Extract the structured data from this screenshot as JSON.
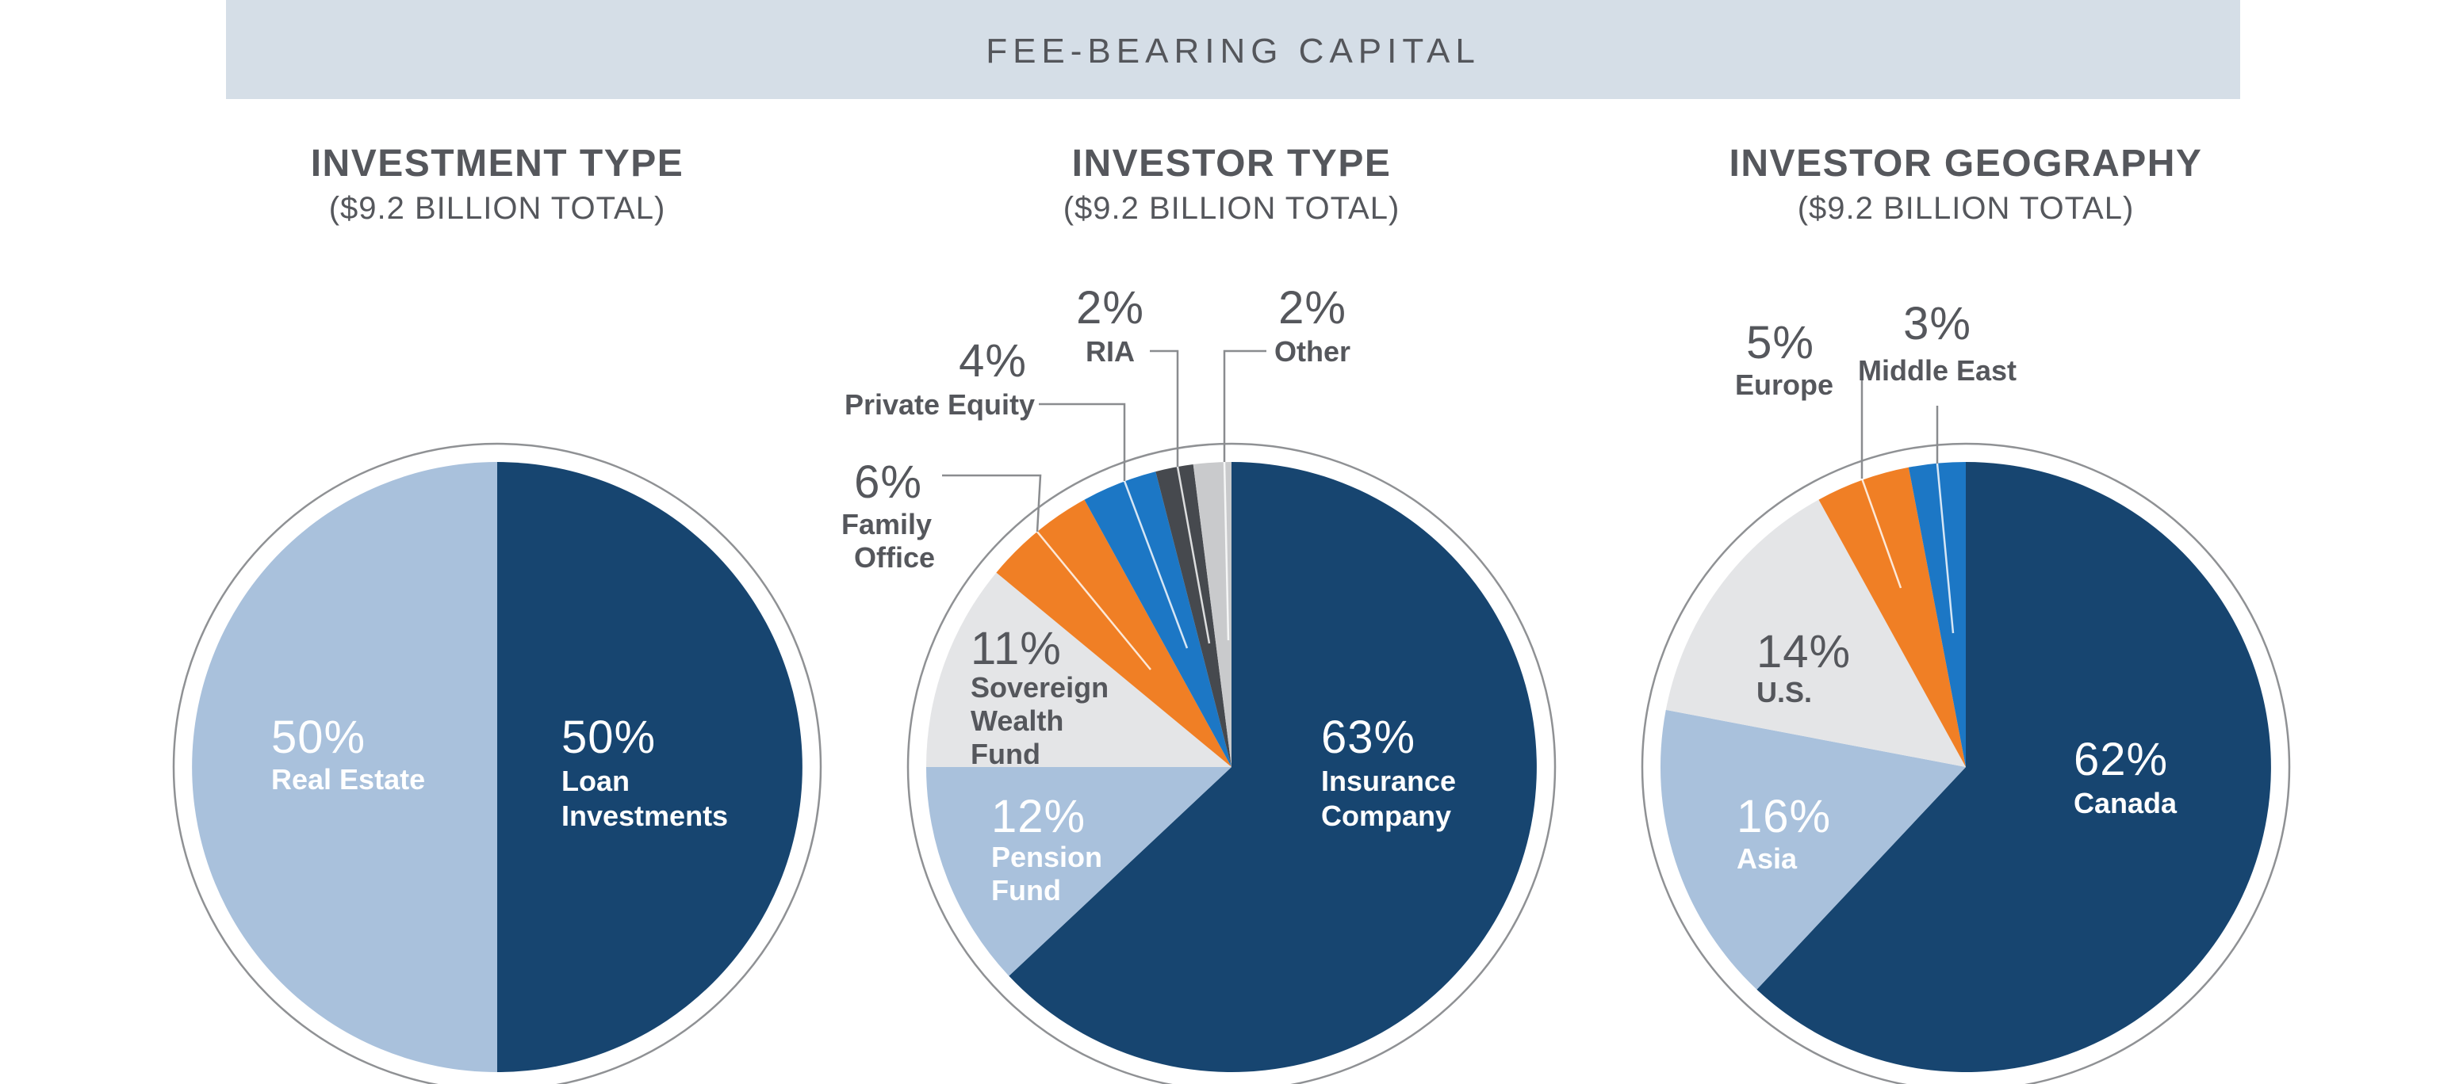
{
  "header": {
    "title": "FEE-BEARING CAPITAL"
  },
  "palette": {
    "banner_bg": "#D5DEE7",
    "text_dark": "#55575C",
    "white": "#FFFFFF",
    "ring": "#8F9194",
    "leader": "#8A8C8F",
    "navy": "#174570",
    "light_blue": "#A9C1DC",
    "silver": "#E4E5E7",
    "orange": "#F07F25",
    "blue": "#1C77C5",
    "dark_gray": "#46494E",
    "gray": "#C9CACC"
  },
  "chart_data": [
    {
      "type": "pie",
      "title": "INVESTMENT TYPE",
      "subtitle": "($9.2 BILLION TOTAL)",
      "legend_position": "inside",
      "slices": [
        {
          "label": "Loan Investments",
          "label_lines": [
            "Loan",
            "Investments"
          ],
          "value": 50,
          "pct": "50%",
          "color": "navy"
        },
        {
          "label": "Real Estate",
          "label_lines": [
            "Real Estate"
          ],
          "value": 50,
          "pct": "50%",
          "color": "light_blue"
        }
      ]
    },
    {
      "type": "pie",
      "title": "INVESTOR TYPE",
      "subtitle": "($9.2 BILLION TOTAL)",
      "legend_position": "inside-and-callouts",
      "slices": [
        {
          "label": "Insurance Company",
          "label_lines": [
            "Insurance",
            "Company"
          ],
          "value": 63,
          "pct": "63%",
          "color": "navy"
        },
        {
          "label": "Pension Fund",
          "label_lines": [
            "Pension",
            "Fund"
          ],
          "value": 12,
          "pct": "12%",
          "color": "light_blue"
        },
        {
          "label": "Sovereign Wealth Fund",
          "label_lines": [
            "Sovereign",
            "Wealth",
            "Fund"
          ],
          "value": 11,
          "pct": "11%",
          "color": "silver"
        },
        {
          "label": "Family Office",
          "label_lines": [
            "Family",
            "Office"
          ],
          "value": 6,
          "pct": "6%",
          "color": "orange"
        },
        {
          "label": "Private Equity",
          "label_lines": [
            "Private Equity"
          ],
          "value": 4,
          "pct": "4%",
          "color": "blue"
        },
        {
          "label": "RIA",
          "label_lines": [
            "RIA"
          ],
          "value": 2,
          "pct": "2%",
          "color": "dark_gray"
        },
        {
          "label": "Other",
          "label_lines": [
            "Other"
          ],
          "value": 2,
          "pct": "2%",
          "color": "gray"
        }
      ]
    },
    {
      "type": "pie",
      "title": "INVESTOR GEOGRAPHY",
      "subtitle": "($9.2 BILLION TOTAL)",
      "legend_position": "inside-and-callouts",
      "slices": [
        {
          "label": "Canada",
          "label_lines": [
            "Canada"
          ],
          "value": 62,
          "pct": "62%",
          "color": "navy"
        },
        {
          "label": "Asia",
          "label_lines": [
            "Asia"
          ],
          "value": 16,
          "pct": "16%",
          "color": "light_blue"
        },
        {
          "label": "U.S.",
          "label_lines": [
            "U.S."
          ],
          "value": 14,
          "pct": "14%",
          "color": "silver"
        },
        {
          "label": "Europe",
          "label_lines": [
            "Europe"
          ],
          "value": 5,
          "pct": "5%",
          "color": "orange"
        },
        {
          "label": "Middle East",
          "label_lines": [
            "Middle East"
          ],
          "value": 3,
          "pct": "3%",
          "color": "blue"
        }
      ]
    }
  ]
}
